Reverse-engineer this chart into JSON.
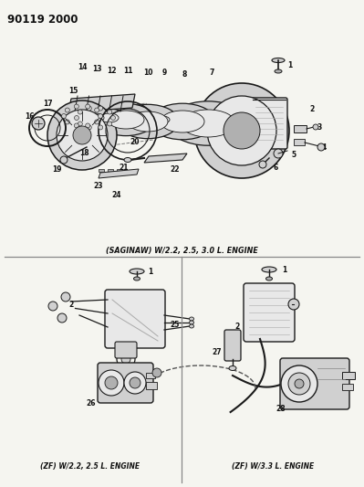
{
  "title": "90119 2000",
  "bg_color": "#f5f5f0",
  "line_color": "#1a1a1a",
  "text_color": "#111111",
  "caption_top": "(SAGINAW) W/2.2, 2.5, 3.0 L. ENGINE",
  "caption_bot_left": "(ZF) W/2.2, 2.5 L. ENGINE",
  "caption_bot_right": "(ZF) W/3.3 L. ENGINE"
}
